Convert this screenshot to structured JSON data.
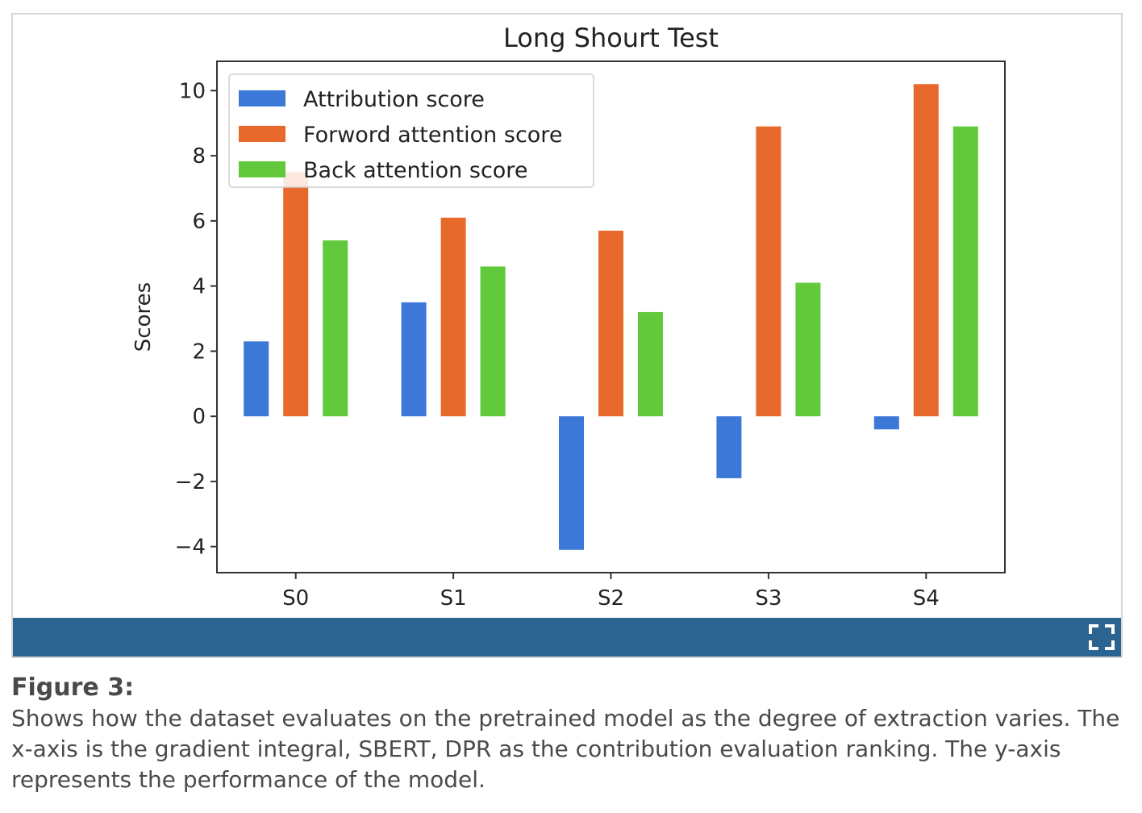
{
  "figure": {
    "caption_label": "Figure 3:",
    "caption_text": "Shows how the dataset evaluates on the pretrained model as the degree of extraction varies. The x-axis is the gradient integral, SBERT, DPR as the contribution evaluation ranking. The y-axis represents the performance of the model.",
    "toolbar_color": "#2b6391",
    "expand_icon": "expand-icon"
  },
  "chart_data": {
    "type": "bar",
    "title": "Long Shourt Test",
    "xlabel": "",
    "ylabel": "Scores",
    "categories": [
      "S0",
      "S1",
      "S2",
      "S3",
      "S4"
    ],
    "ylim": [
      -4.8,
      10.9
    ],
    "yticks": [
      -4,
      -2,
      0,
      2,
      4,
      6,
      8,
      10
    ],
    "ytick_labels": [
      "−4",
      "−2",
      "0",
      "2",
      "4",
      "6",
      "8",
      "10"
    ],
    "grid": false,
    "legend_position": "top-left",
    "series": [
      {
        "name": "Attribution score",
        "color": "#3b78d8",
        "values": [
          2.3,
          3.5,
          -4.1,
          -1.9,
          -0.4
        ]
      },
      {
        "name": "Forword attention score",
        "color": "#e8692c",
        "values": [
          7.5,
          6.1,
          5.7,
          8.9,
          10.2
        ]
      },
      {
        "name": "Back attention score",
        "color": "#62c93c",
        "values": [
          5.4,
          4.6,
          3.2,
          4.1,
          8.9
        ]
      }
    ]
  }
}
